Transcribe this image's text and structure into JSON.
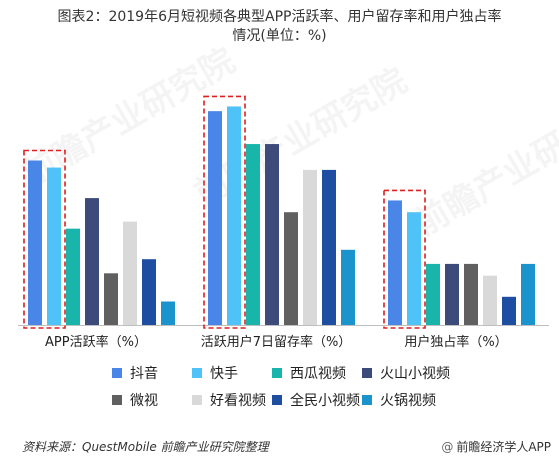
{
  "title": {
    "line1": "图表2：2019年6月短视频各典型APP活跃率、用户留存率和用户独占率",
    "line2": "情况(单位：%)"
  },
  "chart_data": {
    "type": "bar",
    "categories": [
      "APP活跃率（%）",
      "活跃用户7日留存率（%）",
      "用户独占率（%）"
    ],
    "series": [
      {
        "name": "抖音",
        "color": "#4a86e8",
        "values": [
          70,
          91,
          53
        ]
      },
      {
        "name": "快手",
        "color": "#4fc3f7",
        "values": [
          67,
          93,
          48
        ]
      },
      {
        "name": "西瓜视频",
        "color": "#19b5aa",
        "values": [
          41,
          77,
          26
        ]
      },
      {
        "name": "火山小视频",
        "color": "#3d4b7b",
        "values": [
          54,
          77,
          26
        ]
      },
      {
        "name": "微视",
        "color": "#606060",
        "values": [
          22,
          48,
          26
        ]
      },
      {
        "name": "好看视频",
        "color": "#d9d9d9",
        "values": [
          44,
          66,
          21
        ]
      },
      {
        "name": "全民小视频",
        "color": "#1e4ea1",
        "values": [
          28,
          66,
          12
        ]
      },
      {
        "name": "火锅视频",
        "color": "#1b93cc",
        "values": [
          10,
          32,
          26
        ]
      }
    ],
    "highlight_series": [
      "抖音",
      "快手"
    ],
    "ylim": [
      0,
      100
    ],
    "grid": false,
    "legend_position": "bottom"
  },
  "watermark": "前瞻产业研究院",
  "source": "资料来源：QuestMobile 前瞻产业研究院整理",
  "brand": {
    "icon": "at-icon",
    "symbol": "@",
    "text": "前瞻经济学人APP"
  }
}
